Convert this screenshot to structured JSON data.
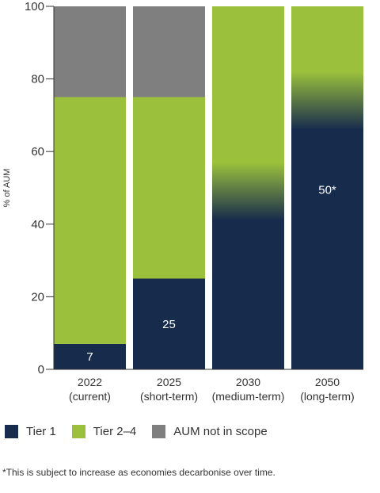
{
  "chart_data": {
    "type": "bar",
    "stacked": true,
    "categories": [
      {
        "line1": "2022",
        "line2": "(current)"
      },
      {
        "line1": "2025",
        "line2": "(short-term)"
      },
      {
        "line1": "2030",
        "line2": "(medium-term)"
      },
      {
        "line1": "2050",
        "line2": "(long-term)"
      }
    ],
    "series": [
      {
        "name": "Tier 1",
        "color": "#172b4d",
        "values": [
          7,
          25,
          50,
          75
        ]
      },
      {
        "name": "Tier 2–4",
        "color": "#9bc13c",
        "values": [
          68,
          50,
          50,
          25
        ]
      },
      {
        "name": "AUM not in scope",
        "color": "#7f7f7f",
        "values": [
          25,
          25,
          0,
          0
        ]
      }
    ],
    "gradient_boundaries": [
      null,
      null,
      50,
      75
    ],
    "data_labels": [
      "7",
      "25",
      "",
      "50*"
    ],
    "ylabel": "% of AUM",
    "ylim": [
      0,
      100
    ],
    "yticks": [
      0,
      20,
      40,
      60,
      80,
      100
    ],
    "grid": false,
    "legend_position": "bottom-left"
  },
  "footnote": "*This is subject to increase as economies decarbonise over time."
}
